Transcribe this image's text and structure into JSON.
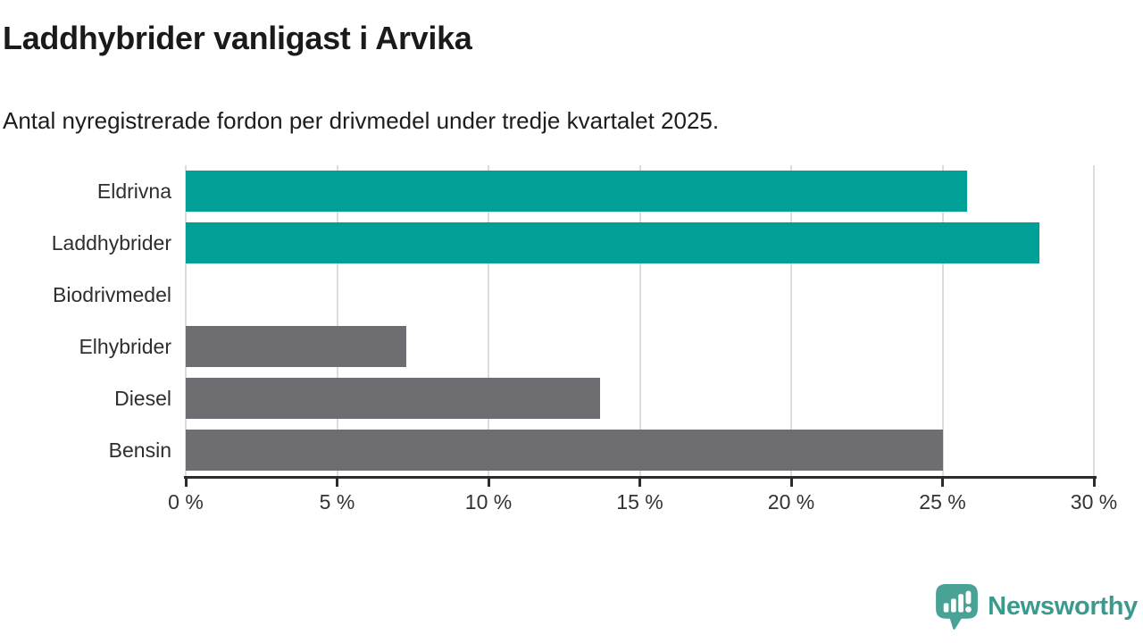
{
  "header": {
    "title": "Laddhybrider vanligast i Arvika",
    "subtitle": "Antal nyregistrerade fordon per drivmedel under tredje kvartalet 2025."
  },
  "chart_data": {
    "type": "bar",
    "orientation": "horizontal",
    "title": "Laddhybrider vanligast i Arvika",
    "subtitle": "Antal nyregistrerade fordon per drivmedel under tredje kvartalet 2025.",
    "categories": [
      "Eldrivna",
      "Laddhybrider",
      "Biodrivmedel",
      "Elhybrider",
      "Diesel",
      "Bensin"
    ],
    "values": [
      25.8,
      28.2,
      0,
      7.3,
      13.7,
      25.0
    ],
    "unit": "%",
    "xlim": [
      0,
      30
    ],
    "x_tick_values": [
      0,
      5,
      10,
      15,
      20,
      25,
      30
    ],
    "x_tick_labels": [
      "0 %",
      "5 %",
      "10 %",
      "15 %",
      "20 %",
      "25 %",
      "30 %"
    ],
    "grid": "vertical",
    "legend": "none",
    "bar_colors": [
      "#00A096",
      "#00A096",
      "#6D6D72",
      "#6D6D72",
      "#6D6D72",
      "#6D6D72"
    ],
    "highlight_color": "#00A096",
    "default_color": "#6D6D72",
    "gridline_color": "#dcdcde",
    "axis_color": "#2b2b2b"
  },
  "footer": {
    "brand": "Newsworthy",
    "brand_color": "#3a9a8d",
    "logo_icon_color": "#4aa296",
    "logo_icon": "newsworthy-bar-chart-bubble-icon"
  }
}
